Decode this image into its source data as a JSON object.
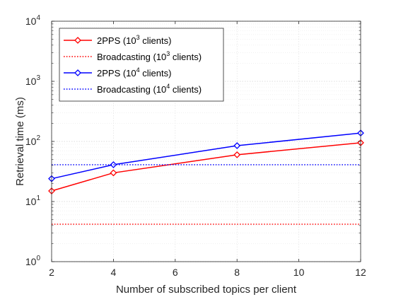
{
  "chart_data": {
    "type": "line",
    "xlabel": "Number of subscribed topics per client",
    "ylabel": "Retrieval time (ms)",
    "x_scale": "linear",
    "y_scale": "log",
    "xlim": [
      2,
      12
    ],
    "ylim": [
      1,
      10000
    ],
    "x_ticks": [
      2,
      4,
      6,
      8,
      10,
      12
    ],
    "y_ticks": [
      {
        "value": 1,
        "base": "10",
        "exp": "0"
      },
      {
        "value": 10,
        "base": "10",
        "exp": "1"
      },
      {
        "value": 100,
        "base": "10",
        "exp": "2"
      },
      {
        "value": 1000,
        "base": "10",
        "exp": "3"
      },
      {
        "value": 10000,
        "base": "10",
        "exp": "4"
      }
    ],
    "grid": true,
    "minor_grid": true,
    "legend_position": "top-left",
    "series": [
      {
        "name_parts": [
          "2PPS (10",
          "3",
          " clients)"
        ],
        "color": "#ff0000",
        "style": "solid",
        "marker": "diamond",
        "x": [
          2,
          4,
          8,
          12
        ],
        "y": [
          15,
          30,
          60,
          95
        ]
      },
      {
        "name_parts": [
          "Broadcasting (10",
          "3",
          " clients)"
        ],
        "color": "#ff0000",
        "style": "dotted",
        "marker": "none",
        "x": [
          2,
          12
        ],
        "y": [
          4.2,
          4.2
        ]
      },
      {
        "name_parts": [
          "2PPS (10",
          "4",
          " clients)"
        ],
        "color": "#0000ff",
        "style": "solid",
        "marker": "diamond",
        "x": [
          2,
          4,
          8,
          12
        ],
        "y": [
          24,
          41,
          85,
          138
        ]
      },
      {
        "name_parts": [
          "Broadcasting (10",
          "4",
          " clients)"
        ],
        "color": "#0000ff",
        "style": "dotted",
        "marker": "none",
        "x": [
          2,
          12
        ],
        "y": [
          41,
          41
        ]
      }
    ]
  }
}
